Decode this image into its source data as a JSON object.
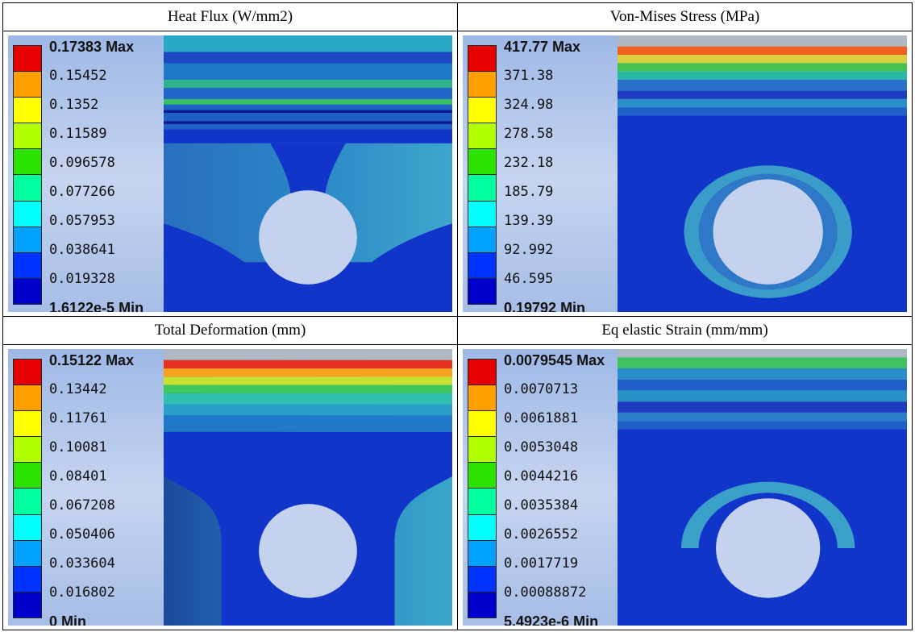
{
  "panels": [
    {
      "title": "Heat Flux (W/mm2)",
      "max_label": "0.17383 Max",
      "levels": [
        "0.15452",
        "0.1352",
        "0.11589",
        "0.096578",
        "0.077266",
        "0.057953",
        "0.038641",
        "0.019328"
      ],
      "min_label": "1.6122e-5 Min"
    },
    {
      "title": "Von-Mises Stress (MPa)",
      "max_label": "417.77 Max",
      "levels": [
        "371.38",
        "324.98",
        "278.58",
        "232.18",
        "185.79",
        "139.39",
        "92.992",
        "46.595"
      ],
      "min_label": "0.19792 Min"
    },
    {
      "title": "Total Deformation (mm)",
      "max_label": "0.15122 Max",
      "levels": [
        "0.13442",
        "0.11761",
        "0.10081",
        "0.08401",
        "0.067208",
        "0.050406",
        "0.033604",
        "0.016802"
      ],
      "min_label": "0 Min"
    },
    {
      "title": "Eq elastic Strain (mm/mm)",
      "max_label": "0.0079545 Max",
      "levels": [
        "0.0070713",
        "0.0061881",
        "0.0053048",
        "0.0044216",
        "0.0035384",
        "0.0026552",
        "0.0017719",
        "0.00088872"
      ],
      "min_label": "5.4923e-6 Min"
    }
  ],
  "legend_colors": [
    "#e60000",
    "#ff9f00",
    "#ffff00",
    "#b2ff00",
    "#2ce300",
    "#00ff9e",
    "#00ffff",
    "#00a2ff",
    "#0033ff",
    "#0000cc"
  ],
  "contour_colors": {
    "deep_blue": "#1134c9",
    "mid_blue": "#1f5fd4",
    "teal": "#2a96c8",
    "light_teal": "#3fb4c8",
    "hole": "#c4d2ee"
  }
}
